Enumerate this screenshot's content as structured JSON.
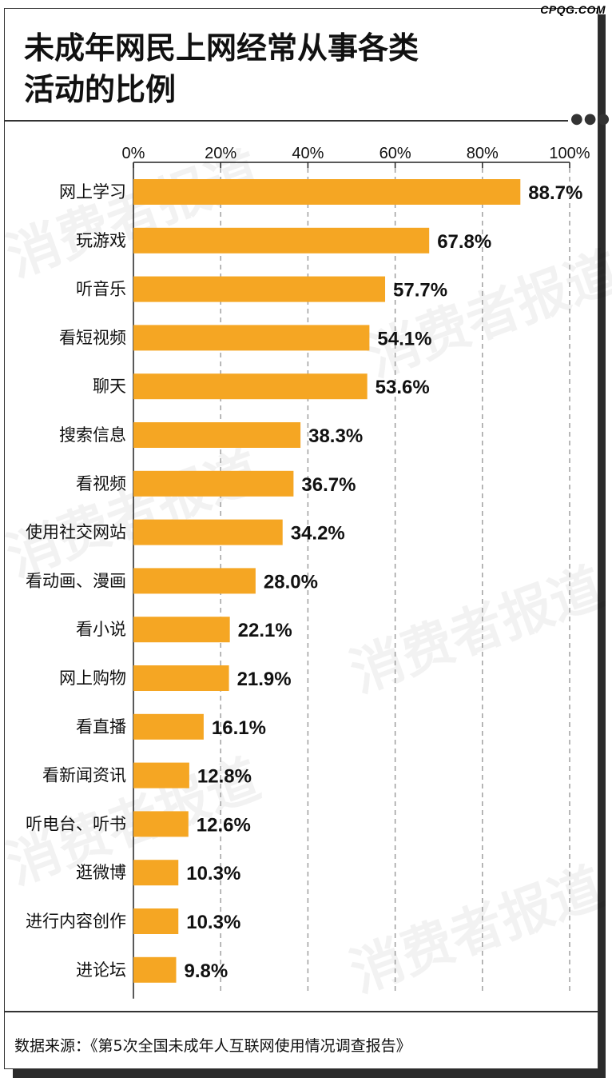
{
  "header": {
    "brand": "CPQG.COM",
    "title_line1": "未成年网民上网经常从事各类",
    "title_line2": "活动的比例",
    "watermark": "消费者报道"
  },
  "chart_data": {
    "type": "bar",
    "orientation": "horizontal",
    "title": "未成年网民上网经常从事各类活动的比例",
    "categories": [
      "网上学习",
      "玩游戏",
      "听音乐",
      "看短视频",
      "聊天",
      "搜索信息",
      "看视频",
      "使用社交网站",
      "看动画、漫画",
      "看小说",
      "网上购物",
      "看直播",
      "看新闻资讯",
      "听电台、听书",
      "逛微博",
      "进行内容创作",
      "进论坛"
    ],
    "values": [
      88.7,
      67.8,
      57.7,
      54.1,
      53.6,
      38.3,
      36.7,
      34.2,
      28.0,
      22.1,
      21.9,
      16.1,
      12.8,
      12.6,
      10.3,
      10.3,
      9.8
    ],
    "value_labels": [
      "88.7%",
      "67.8%",
      "57.7%",
      "54.1%",
      "53.6%",
      "38.3%",
      "36.7%",
      "34.2%",
      "28.0%",
      "22.1%",
      "21.9%",
      "16.1%",
      "12.8%",
      "12.6%",
      "10.3%",
      "10.3%",
      "9.8%"
    ],
    "ticks": [
      "0%",
      "20%",
      "40%",
      "60%",
      "80%",
      "100%"
    ],
    "xlim": [
      0,
      100
    ],
    "unit": "%",
    "grid": true,
    "bar_color": "#F5A623"
  },
  "footer": {
    "source": "数据来源：《第5次全国未成年人互联网使用情况调查报告》"
  }
}
